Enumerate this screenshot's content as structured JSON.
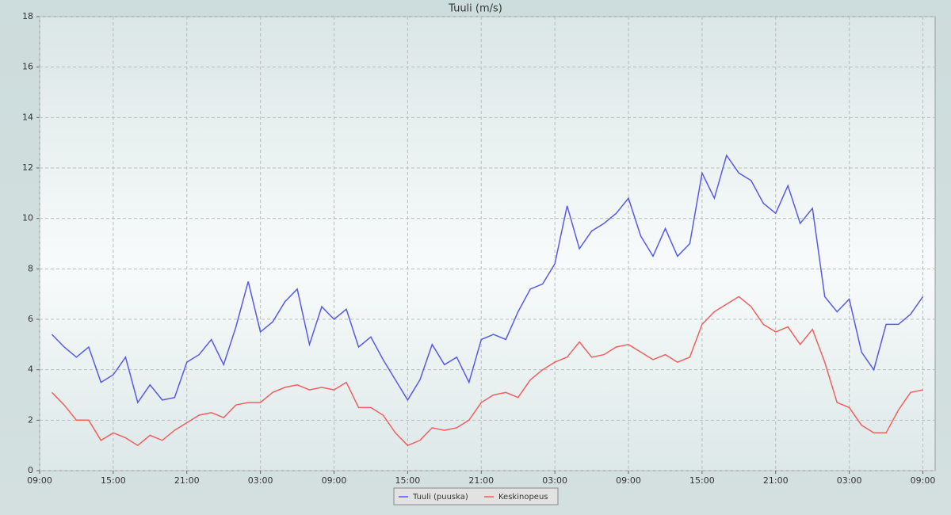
{
  "chart_data": {
    "type": "line",
    "title": "Tuuli (m/s)",
    "x": [
      1,
      2,
      3,
      4,
      5,
      6,
      7,
      8,
      9,
      10,
      11,
      12,
      13,
      14,
      15,
      16,
      17,
      18,
      19,
      20,
      21,
      22,
      23,
      24,
      25,
      26,
      27,
      28,
      29,
      30,
      31,
      32,
      33,
      34,
      35,
      36,
      37,
      38,
      39,
      40,
      41,
      42,
      43,
      44,
      45,
      46,
      47,
      48,
      49,
      50,
      51,
      52,
      53,
      54,
      55,
      56,
      57,
      58,
      59,
      60,
      61,
      62,
      63,
      64,
      65,
      66,
      67,
      68,
      69,
      70,
      71,
      72
    ],
    "series": [
      {
        "name": "Tuuli (puuska)",
        "color": "#5a5ae6",
        "values": [
          5.4,
          4.9,
          4.5,
          4.9,
          3.5,
          3.8,
          4.5,
          2.7,
          3.4,
          2.8,
          2.9,
          4.3,
          4.6,
          5.2,
          4.2,
          5.7,
          7.5,
          5.5,
          5.9,
          6.7,
          7.2,
          5.0,
          6.5,
          6.0,
          6.4,
          4.9,
          5.3,
          4.4,
          3.6,
          2.8,
          3.6,
          5.0,
          4.2,
          4.5,
          3.5,
          5.2,
          5.4,
          5.2,
          6.3,
          7.2,
          7.4,
          8.2,
          10.5,
          8.8,
          9.5,
          9.8,
          10.2,
          10.8,
          9.3,
          8.5,
          9.6,
          8.5,
          9.0,
          11.8,
          10.8,
          12.5,
          11.8,
          11.5,
          10.6,
          10.2,
          11.3,
          9.8,
          10.4,
          6.9,
          6.3,
          6.8,
          4.7,
          4.0,
          5.8,
          5.8,
          6.2,
          6.9
        ]
      },
      {
        "name": "Keskinopeus",
        "color": "#f06060",
        "values": [
          3.1,
          2.6,
          2.0,
          2.0,
          1.2,
          1.5,
          1.3,
          1.0,
          1.4,
          1.2,
          1.6,
          1.9,
          2.2,
          2.3,
          2.1,
          2.6,
          2.7,
          2.7,
          3.1,
          3.3,
          3.4,
          3.2,
          3.3,
          3.2,
          3.5,
          2.5,
          2.5,
          2.2,
          1.5,
          1.0,
          1.2,
          1.7,
          1.6,
          1.7,
          2.0,
          2.7,
          3.0,
          3.1,
          2.9,
          3.6,
          4.0,
          4.3,
          4.5,
          5.1,
          4.5,
          4.6,
          4.9,
          5.0,
          4.7,
          4.4,
          4.6,
          4.3,
          4.5,
          5.8,
          6.3,
          6.6,
          6.9,
          6.5,
          5.8,
          5.5,
          5.7,
          5.0,
          5.6,
          4.3,
          2.7,
          2.5,
          1.8,
          1.5,
          1.5,
          2.4,
          3.1,
          3.2
        ]
      }
    ],
    "xlim": [
      0,
      73
    ],
    "xticks": [
      {
        "value": 0,
        "label": "09:00"
      },
      {
        "value": 6,
        "label": "15:00"
      },
      {
        "value": 12,
        "label": "21:00"
      },
      {
        "value": 18,
        "label": "03:00"
      },
      {
        "value": 24,
        "label": "09:00"
      },
      {
        "value": 30,
        "label": "15:00"
      },
      {
        "value": 36,
        "label": "21:00"
      },
      {
        "value": 42,
        "label": "03:00"
      },
      {
        "value": 48,
        "label": "09:00"
      },
      {
        "value": 54,
        "label": "15:00"
      },
      {
        "value": 60,
        "label": "21:00"
      },
      {
        "value": 66,
        "label": "03:00"
      },
      {
        "value": 72,
        "label": "09:00"
      }
    ],
    "ylim": [
      0,
      18
    ],
    "yticks": [
      0,
      2,
      4,
      6,
      8,
      10,
      12,
      14,
      16,
      18
    ],
    "grid": true
  }
}
